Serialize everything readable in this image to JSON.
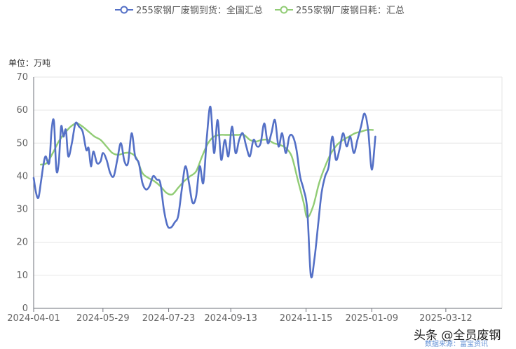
{
  "chart_data": {
    "type": "line",
    "unit_label": "单位：万吨",
    "ylim": [
      0,
      70
    ],
    "y_ticks": [
      0,
      10,
      20,
      30,
      40,
      50,
      60,
      70
    ],
    "x_tick_labels": [
      "2024-04-01",
      "2024-05-29",
      "2024-07-23",
      "2024-09-13",
      "2024-11-15",
      "2025-01-09",
      "2025-03-12"
    ],
    "grid": true,
    "legend_position": "top-center",
    "series": [
      {
        "name": "255家钢厂废钢到货：全国汇总",
        "color": "#5470c6",
        "points": [
          [
            "2024-04-01",
            39.5
          ],
          [
            "2024-04-03",
            35.0
          ],
          [
            "2024-04-05",
            33.5
          ],
          [
            "2024-04-07",
            38.0
          ],
          [
            "2024-04-09",
            43.0
          ],
          [
            "2024-04-11",
            46.0
          ],
          [
            "2024-04-14",
            44.0
          ],
          [
            "2024-04-16",
            54.0
          ],
          [
            "2024-04-18",
            56.5
          ],
          [
            "2024-04-20",
            42.0
          ],
          [
            "2024-04-22",
            44.0
          ],
          [
            "2024-04-24",
            55.0
          ],
          [
            "2024-04-26",
            52.0
          ],
          [
            "2024-04-28",
            54.0
          ],
          [
            "2024-04-30",
            46.0
          ],
          [
            "2024-05-03",
            50.0
          ],
          [
            "2024-05-06",
            56.0
          ],
          [
            "2024-05-09",
            55.0
          ],
          [
            "2024-05-12",
            53.5
          ],
          [
            "2024-05-15",
            48.0
          ],
          [
            "2024-05-17",
            48.5
          ],
          [
            "2024-05-19",
            43.0
          ],
          [
            "2024-05-21",
            47.5
          ],
          [
            "2024-05-24",
            44.0
          ],
          [
            "2024-05-27",
            44.5
          ],
          [
            "2024-05-29",
            47.0
          ],
          [
            "2024-06-01",
            45.0
          ],
          [
            "2024-06-04",
            41.0
          ],
          [
            "2024-06-07",
            40.0
          ],
          [
            "2024-06-10",
            45.0
          ],
          [
            "2024-06-13",
            50.0
          ],
          [
            "2024-06-16",
            44.5
          ],
          [
            "2024-06-19",
            44.0
          ],
          [
            "2024-06-22",
            53.0
          ],
          [
            "2024-06-25",
            46.0
          ],
          [
            "2024-06-28",
            44.0
          ],
          [
            "2024-07-01",
            38.0
          ],
          [
            "2024-07-04",
            36.0
          ],
          [
            "2024-07-07",
            37.0
          ],
          [
            "2024-07-10",
            40.0
          ],
          [
            "2024-07-13",
            39.0
          ],
          [
            "2024-07-16",
            38.0
          ],
          [
            "2024-07-19",
            30.0
          ],
          [
            "2024-07-22",
            25.0
          ],
          [
            "2024-07-25",
            24.5
          ],
          [
            "2024-07-28",
            26.0
          ],
          [
            "2024-07-31",
            28.0
          ],
          [
            "2024-08-03",
            36.0
          ],
          [
            "2024-08-06",
            43.0
          ],
          [
            "2024-08-09",
            38.0
          ],
          [
            "2024-08-12",
            32.0
          ],
          [
            "2024-08-15",
            34.0
          ],
          [
            "2024-08-18",
            43.0
          ],
          [
            "2024-08-21",
            38.0
          ],
          [
            "2024-08-24",
            52.0
          ],
          [
            "2024-08-27",
            61.0
          ],
          [
            "2024-08-30",
            47.0
          ],
          [
            "2024-09-02",
            57.0
          ],
          [
            "2024-09-05",
            45.0
          ],
          [
            "2024-09-08",
            51.0
          ],
          [
            "2024-09-11",
            46.0
          ],
          [
            "2024-09-14",
            55.0
          ],
          [
            "2024-09-17",
            47.0
          ],
          [
            "2024-09-20",
            51.0
          ],
          [
            "2024-09-23",
            53.0
          ],
          [
            "2024-09-26",
            49.0
          ],
          [
            "2024-09-29",
            46.0
          ],
          [
            "2024-10-02",
            51.0
          ],
          [
            "2024-10-05",
            49.0
          ],
          [
            "2024-10-08",
            50.0
          ],
          [
            "2024-10-11",
            56.0
          ],
          [
            "2024-10-14",
            50.0
          ],
          [
            "2024-10-17",
            53.0
          ],
          [
            "2024-10-20",
            57.0
          ],
          [
            "2024-10-23",
            49.0
          ],
          [
            "2024-10-26",
            53.0
          ],
          [
            "2024-10-29",
            47.0
          ],
          [
            "2024-11-01",
            52.0
          ],
          [
            "2024-11-04",
            52.0
          ],
          [
            "2024-11-07",
            48.0
          ],
          [
            "2024-11-10",
            40.0
          ],
          [
            "2024-11-13",
            36.0
          ],
          [
            "2024-11-16",
            30.0
          ],
          [
            "2024-11-19",
            10.0
          ],
          [
            "2024-11-22",
            15.0
          ],
          [
            "2024-11-25",
            25.0
          ],
          [
            "2024-11-28",
            35.0
          ],
          [
            "2024-12-01",
            40.0
          ],
          [
            "2024-12-04",
            43.0
          ],
          [
            "2024-12-07",
            52.0
          ],
          [
            "2024-12-10",
            45.0
          ],
          [
            "2024-12-13",
            48.0
          ],
          [
            "2024-12-16",
            53.0
          ],
          [
            "2024-12-19",
            49.0
          ],
          [
            "2024-12-22",
            52.0
          ],
          [
            "2024-12-25",
            47.0
          ],
          [
            "2024-12-28",
            51.0
          ],
          [
            "2024-12-31",
            55.0
          ],
          [
            "2025-01-03",
            59.0
          ],
          [
            "2025-01-06",
            54.0
          ],
          [
            "2025-01-09",
            42.0
          ],
          [
            "2025-01-12",
            52.0
          ]
        ]
      },
      {
        "name": "255家钢厂废钢日耗：汇总",
        "color": "#91cc75",
        "points": [
          [
            "2024-04-07",
            43.5
          ],
          [
            "2024-04-12",
            44.0
          ],
          [
            "2024-04-17",
            47.0
          ],
          [
            "2024-04-22",
            50.5
          ],
          [
            "2024-04-27",
            53.0
          ],
          [
            "2024-05-02",
            55.0
          ],
          [
            "2024-05-07",
            56.0
          ],
          [
            "2024-05-12",
            55.0
          ],
          [
            "2024-05-17",
            53.5
          ],
          [
            "2024-05-22",
            52.0
          ],
          [
            "2024-05-27",
            51.0
          ],
          [
            "2024-06-01",
            49.0
          ],
          [
            "2024-06-06",
            47.0
          ],
          [
            "2024-06-11",
            46.5
          ],
          [
            "2024-06-16",
            47.0
          ],
          [
            "2024-06-21",
            47.0
          ],
          [
            "2024-06-26",
            45.5
          ],
          [
            "2024-07-01",
            41.0
          ],
          [
            "2024-07-06",
            39.5
          ],
          [
            "2024-07-11",
            38.5
          ],
          [
            "2024-07-16",
            37.0
          ],
          [
            "2024-07-21",
            35.0
          ],
          [
            "2024-07-26",
            34.5
          ],
          [
            "2024-07-31",
            36.5
          ],
          [
            "2024-08-05",
            38.5
          ],
          [
            "2024-08-10",
            40.0
          ],
          [
            "2024-08-15",
            41.5
          ],
          [
            "2024-08-20",
            46.0
          ],
          [
            "2024-08-25",
            50.0
          ],
          [
            "2024-08-30",
            52.0
          ],
          [
            "2024-09-04",
            52.5
          ],
          [
            "2024-09-09",
            52.5
          ],
          [
            "2024-09-14",
            52.5
          ],
          [
            "2024-09-19",
            52.5
          ],
          [
            "2024-09-24",
            52.5
          ],
          [
            "2024-09-29",
            51.0
          ],
          [
            "2024-10-04",
            50.5
          ],
          [
            "2024-10-09",
            51.0
          ],
          [
            "2024-10-14",
            51.0
          ],
          [
            "2024-10-19",
            50.0
          ],
          [
            "2024-10-24",
            49.5
          ],
          [
            "2024-10-29",
            48.5
          ],
          [
            "2024-11-03",
            46.0
          ],
          [
            "2024-11-08",
            39.0
          ],
          [
            "2024-11-13",
            32.0
          ],
          [
            "2024-11-16",
            27.5
          ],
          [
            "2024-11-21",
            31.0
          ],
          [
            "2024-11-26",
            38.0
          ],
          [
            "2024-12-01",
            43.0
          ],
          [
            "2024-12-06",
            47.0
          ],
          [
            "2024-12-11",
            49.5
          ],
          [
            "2024-12-16",
            51.0
          ],
          [
            "2024-12-21",
            52.0
          ],
          [
            "2024-12-26",
            53.0
          ],
          [
            "2024-12-31",
            53.5
          ],
          [
            "2025-01-05",
            54.0
          ],
          [
            "2025-01-10",
            54.0
          ]
        ]
      }
    ]
  },
  "watermark": {
    "text": "头条 @全员废钢",
    "sub": "数据来源：富宝资讯"
  }
}
